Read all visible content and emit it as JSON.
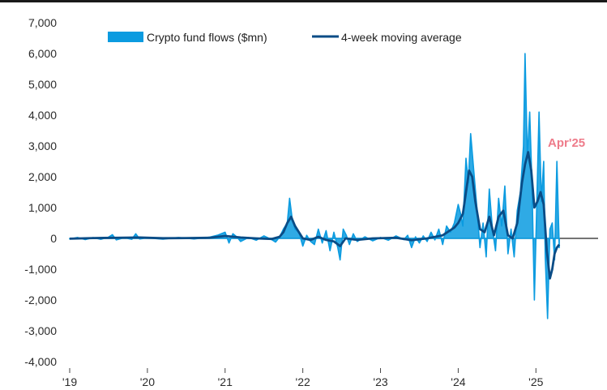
{
  "chart_data": {
    "type": "area",
    "title": "",
    "xlabel": "",
    "ylabel": "",
    "ylim": [
      -4000,
      7000
    ],
    "y_ticks": [
      7000,
      6000,
      5000,
      4000,
      3000,
      2000,
      1000,
      0,
      -1000,
      -2000,
      -3000,
      -4000
    ],
    "y_tick_labels": [
      "7,000",
      "6,000",
      "5,000",
      "4,000",
      "3,000",
      "2,000",
      "1,000",
      "0",
      "-1,000",
      "-2,000",
      "-3,000",
      "-4,000"
    ],
    "x_range": [
      2019.0,
      2025.8
    ],
    "x_ticks": [
      2019,
      2020,
      2021,
      2022,
      2023,
      2024,
      2025
    ],
    "x_tick_labels": [
      "'19",
      "'20",
      "'21",
      "'22",
      "'23",
      "'24",
      "'25"
    ],
    "grid": false,
    "legend_position": "top",
    "colors": {
      "flows": "#0b9be0",
      "moving_average": "#0a4c86",
      "annotation": "#ee7b8a",
      "axis": "#222222"
    },
    "series": [
      {
        "name": "Crypto fund flows ($mn)",
        "kind": "area",
        "points": [
          [
            2019.0,
            -20
          ],
          [
            2019.1,
            30
          ],
          [
            2019.2,
            -40
          ],
          [
            2019.3,
            25
          ],
          [
            2019.4,
            -30
          ],
          [
            2019.5,
            40
          ],
          [
            2019.55,
            120
          ],
          [
            2019.6,
            -50
          ],
          [
            2019.7,
            20
          ],
          [
            2019.8,
            -30
          ],
          [
            2019.85,
            150
          ],
          [
            2019.9,
            -20
          ],
          [
            2020.0,
            15
          ],
          [
            2020.2,
            -25
          ],
          [
            2020.4,
            30
          ],
          [
            2020.6,
            -20
          ],
          [
            2020.8,
            40
          ],
          [
            2020.9,
            100
          ],
          [
            2021.0,
            200
          ],
          [
            2021.05,
            -150
          ],
          [
            2021.1,
            150
          ],
          [
            2021.15,
            50
          ],
          [
            2021.2,
            -100
          ],
          [
            2021.3,
            30
          ],
          [
            2021.4,
            -60
          ],
          [
            2021.5,
            80
          ],
          [
            2021.6,
            -40
          ],
          [
            2021.65,
            -120
          ],
          [
            2021.7,
            40
          ],
          [
            2021.75,
            300
          ],
          [
            2021.8,
            500
          ],
          [
            2021.83,
            1300
          ],
          [
            2021.86,
            700
          ],
          [
            2021.9,
            300
          ],
          [
            2021.95,
            200
          ],
          [
            2022.0,
            -250
          ],
          [
            2022.05,
            100
          ],
          [
            2022.1,
            -100
          ],
          [
            2022.15,
            -200
          ],
          [
            2022.2,
            300
          ],
          [
            2022.25,
            -150
          ],
          [
            2022.3,
            250
          ],
          [
            2022.35,
            -400
          ],
          [
            2022.4,
            200
          ],
          [
            2022.45,
            -300
          ],
          [
            2022.48,
            -700
          ],
          [
            2022.52,
            300
          ],
          [
            2022.56,
            100
          ],
          [
            2022.6,
            -200
          ],
          [
            2022.65,
            150
          ],
          [
            2022.7,
            -100
          ],
          [
            2022.8,
            50
          ],
          [
            2022.9,
            -80
          ],
          [
            2023.0,
            30
          ],
          [
            2023.1,
            -60
          ],
          [
            2023.2,
            80
          ],
          [
            2023.3,
            -40
          ],
          [
            2023.35,
            100
          ],
          [
            2023.4,
            -300
          ],
          [
            2023.45,
            50
          ],
          [
            2023.5,
            -150
          ],
          [
            2023.55,
            80
          ],
          [
            2023.6,
            -100
          ],
          [
            2023.65,
            200
          ],
          [
            2023.7,
            -50
          ],
          [
            2023.75,
            300
          ],
          [
            2023.8,
            -200
          ],
          [
            2023.85,
            400
          ],
          [
            2023.9,
            200
          ],
          [
            2023.95,
            500
          ],
          [
            2024.0,
            1100
          ],
          [
            2024.03,
            800
          ],
          [
            2024.06,
            400
          ],
          [
            2024.1,
            2600
          ],
          [
            2024.13,
            1800
          ],
          [
            2024.16,
            3400
          ],
          [
            2024.2,
            2200
          ],
          [
            2024.24,
            1000
          ],
          [
            2024.28,
            -300
          ],
          [
            2024.32,
            500
          ],
          [
            2024.36,
            -600
          ],
          [
            2024.4,
            1600
          ],
          [
            2024.44,
            300
          ],
          [
            2024.48,
            -400
          ],
          [
            2024.52,
            1300
          ],
          [
            2024.56,
            400
          ],
          [
            2024.6,
            1700
          ],
          [
            2024.64,
            -500
          ],
          [
            2024.68,
            300
          ],
          [
            2024.72,
            -600
          ],
          [
            2024.76,
            900
          ],
          [
            2024.8,
            1500
          ],
          [
            2024.84,
            3000
          ],
          [
            2024.86,
            6000
          ],
          [
            2024.89,
            2600
          ],
          [
            2024.92,
            4100
          ],
          [
            2024.95,
            1700
          ],
          [
            2024.98,
            -2000
          ],
          [
            2025.01,
            1000
          ],
          [
            2025.04,
            4100
          ],
          [
            2025.07,
            1200
          ],
          [
            2025.1,
            2500
          ],
          [
            2025.12,
            -600
          ],
          [
            2025.15,
            -2600
          ],
          [
            2025.18,
            300
          ],
          [
            2025.21,
            500
          ],
          [
            2025.24,
            -700
          ],
          [
            2025.27,
            2500
          ],
          [
            2025.3,
            -300
          ]
        ]
      },
      {
        "name": "4-week moving average",
        "kind": "line",
        "points": [
          [
            2019.0,
            -10
          ],
          [
            2019.3,
            10
          ],
          [
            2019.6,
            20
          ],
          [
            2019.9,
            30
          ],
          [
            2020.2,
            5
          ],
          [
            2020.5,
            10
          ],
          [
            2020.8,
            20
          ],
          [
            2021.0,
            80
          ],
          [
            2021.2,
            30
          ],
          [
            2021.4,
            0
          ],
          [
            2021.6,
            -20
          ],
          [
            2021.7,
            50
          ],
          [
            2021.75,
            200
          ],
          [
            2021.8,
            500
          ],
          [
            2021.85,
            700
          ],
          [
            2021.9,
            400
          ],
          [
            2021.95,
            200
          ],
          [
            2022.0,
            0
          ],
          [
            2022.1,
            -50
          ],
          [
            2022.2,
            50
          ],
          [
            2022.3,
            -50
          ],
          [
            2022.4,
            -100
          ],
          [
            2022.48,
            -250
          ],
          [
            2022.55,
            0
          ],
          [
            2022.7,
            -50
          ],
          [
            2022.9,
            0
          ],
          [
            2023.2,
            20
          ],
          [
            2023.4,
            -60
          ],
          [
            2023.6,
            0
          ],
          [
            2023.8,
            100
          ],
          [
            2023.95,
            350
          ],
          [
            2024.0,
            500
          ],
          [
            2024.06,
            800
          ],
          [
            2024.1,
            1500
          ],
          [
            2024.14,
            2200
          ],
          [
            2024.18,
            2000
          ],
          [
            2024.22,
            1200
          ],
          [
            2024.28,
            300
          ],
          [
            2024.34,
            200
          ],
          [
            2024.4,
            700
          ],
          [
            2024.46,
            100
          ],
          [
            2024.52,
            700
          ],
          [
            2024.58,
            900
          ],
          [
            2024.64,
            100
          ],
          [
            2024.7,
            0
          ],
          [
            2024.76,
            500
          ],
          [
            2024.82,
            1800
          ],
          [
            2024.86,
            2400
          ],
          [
            2024.9,
            2800
          ],
          [
            2024.94,
            2200
          ],
          [
            2024.98,
            1000
          ],
          [
            2025.02,
            1200
          ],
          [
            2025.06,
            1500
          ],
          [
            2025.1,
            1100
          ],
          [
            2025.14,
            -400
          ],
          [
            2025.18,
            -1300
          ],
          [
            2025.21,
            -1000
          ],
          [
            2025.24,
            -500
          ],
          [
            2025.27,
            -300
          ],
          [
            2025.3,
            -200
          ]
        ]
      }
    ],
    "annotations": [
      {
        "text": "Apr'25",
        "x": 2025.3,
        "y": 2500
      }
    ]
  }
}
